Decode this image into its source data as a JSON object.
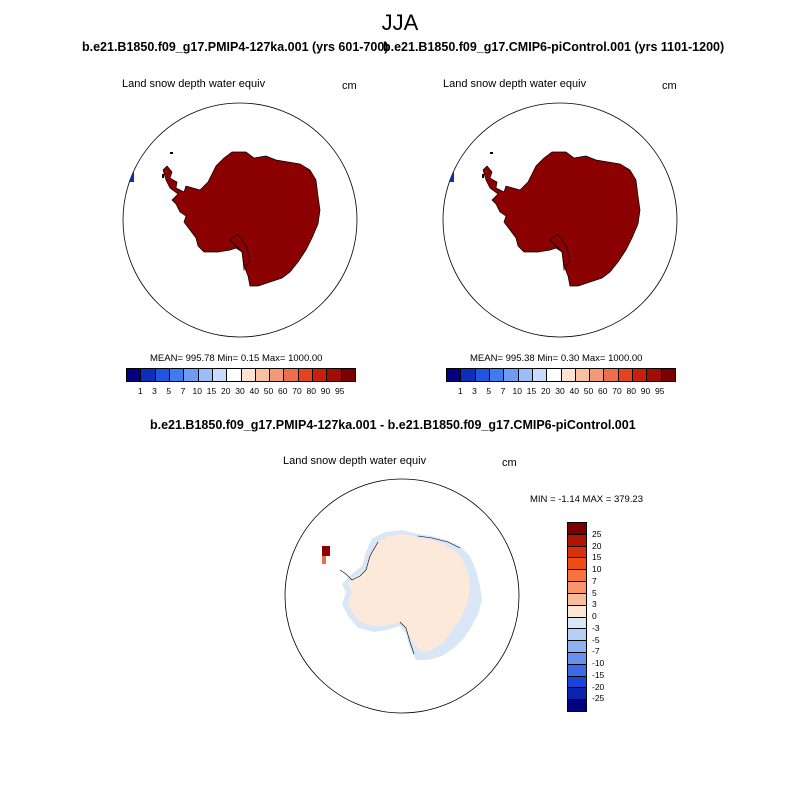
{
  "season": "JJA",
  "panels": [
    {
      "title": "b.e21.B1850.f09_g17.PMIP4-127ka.001 (yrs 601-700)",
      "variable": "Land snow depth water equiv",
      "units": "cm",
      "stats": "MEAN= 995.78  Min=   0.15  Max= 1000.00"
    },
    {
      "title": "b.e21.B1850.f09_g17.CMIP6-piControl.001 (yrs 1101-1200)",
      "variable": "Land snow depth water equiv",
      "units": "cm",
      "stats": "MEAN= 995.38  Min=   0.30  Max= 1000.00"
    }
  ],
  "diff_panel": {
    "title": "b.e21.B1850.f09_g17.PMIP4-127ka.001 - b.e21.B1850.f09_g17.CMIP6-piControl.001",
    "variable": "Land snow depth water equiv",
    "units": "cm",
    "stats": "MIN =  -1.14 MAX = 379.23"
  },
  "colorbar_abs": {
    "colors": [
      "#000080",
      "#0a2fb8",
      "#1f55e0",
      "#3f7af0",
      "#6d9cf5",
      "#9cbdf7",
      "#c8dbfa",
      "#ffffff",
      "#fde3cf",
      "#f7c1a3",
      "#f29a78",
      "#ed6e4a",
      "#e4431f",
      "#c8200c",
      "#a00d04",
      "#7a0000"
    ],
    "labels": [
      "1",
      "3",
      "5",
      "7",
      "10",
      "15",
      "20",
      "30",
      "40",
      "50",
      "60",
      "70",
      "80",
      "90",
      "95"
    ]
  },
  "colorbar_diff": {
    "colors": [
      "#7a0000",
      "#b01404",
      "#d8300d",
      "#f24b1a",
      "#f5733f",
      "#f7956a",
      "#f9bb99",
      "#fde6d2",
      "#d8e6f6",
      "#b6cff6",
      "#8fb1f3",
      "#6890ee",
      "#3d6be6",
      "#1c45d6",
      "#0a24b0",
      "#000080"
    ],
    "labels": [
      "25",
      "20",
      "15",
      "10",
      "7",
      "5",
      "3",
      "0",
      "-3",
      "-5",
      "-7",
      "-10",
      "-15",
      "-20",
      "-25"
    ]
  },
  "map_colors": {
    "saturated": "#8b0000",
    "diff_main": "#fde9d9",
    "diff_negative": "#d8e6f5",
    "diff_high": "#8b0000",
    "ocean_blue": "#0a2fb8"
  }
}
